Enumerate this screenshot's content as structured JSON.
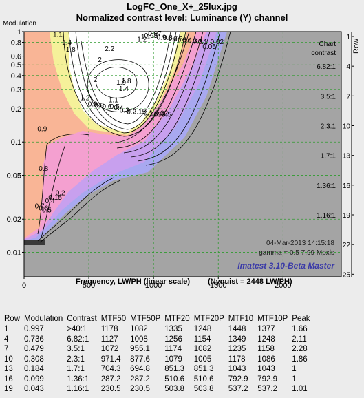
{
  "figure": {
    "title": "LogFC_One_X+_25lux.jpg",
    "subtitle": "Normalized contrast level:  Luminance (Y) channel"
  },
  "chart_data": {
    "type": "contour",
    "ylabel": "Modulation",
    "xlabel": "Frequency, LW/PH (linear scale)",
    "xlabel_note": "(Nyquist = 2448 LW/PH)",
    "y_scale": "log",
    "xlim": [
      0,
      2450
    ],
    "ylim": [
      0.006,
      1
    ],
    "x_ticks": [
      0,
      500,
      1000,
      1500,
      2000
    ],
    "y_ticks": [
      1,
      0.8,
      0.6,
      0.5,
      0.4,
      0.3,
      0.2,
      0.1,
      0.05,
      0.02,
      0.01
    ],
    "grid": true,
    "right_axis": {
      "label": "Row",
      "header": [
        "Chart",
        "contrast"
      ],
      "rows": [
        {
          "row": "1",
          "contrast": ""
        },
        {
          "row": "4",
          "contrast": "6.82:1"
        },
        {
          "row": "7",
          "contrast": "3.5:1"
        },
        {
          "row": "10",
          "contrast": "2.3:1"
        },
        {
          "row": "13",
          "contrast": "1.7:1"
        },
        {
          "row": "16",
          "contrast": "1.36:1"
        },
        {
          "row": "19",
          "contrast": "1.16:1"
        },
        {
          "row": "22",
          "contrast": ""
        },
        {
          "row": "25",
          "contrast": ""
        }
      ]
    },
    "contour_labels": [
      {
        "text": "2.2",
        "x": 660,
        "y": 0.67
      },
      {
        "text": "2",
        "x": 585,
        "y": 0.53
      },
      {
        "text": "2",
        "x": 550,
        "y": 0.35
      },
      {
        "text": "1.9",
        "x": 750,
        "y": 0.33
      },
      {
        "text": "1.8",
        "x": 790,
        "y": 0.34
      },
      {
        "text": "1.4",
        "x": 770,
        "y": 0.29
      },
      {
        "text": "1.2",
        "x": 470,
        "y": 0.24
      },
      {
        "text": "1.1",
        "x": 690,
        "y": 0.23
      },
      {
        "text": "1.1",
        "x": 260,
        "y": 0.9
      },
      {
        "text": "1.4",
        "x": 330,
        "y": 0.76
      },
      {
        "text": "1.8",
        "x": 360,
        "y": 0.66
      },
      {
        "text": "1.1",
        "x": 940,
        "y": 0.86
      },
      {
        "text": "1.2",
        "x": 910,
        "y": 0.81
      },
      {
        "text": "0.97",
        "x": 1010,
        "y": 0.92
      },
      {
        "text": "0.95",
        "x": 980,
        "y": 0.88
      },
      {
        "text": "0.9",
        "x": 1060,
        "y": 0.85
      },
      {
        "text": "0.8",
        "x": 1110,
        "y": 0.84
      },
      {
        "text": "0.7",
        "x": 1150,
        "y": 0.83
      },
      {
        "text": "0.6",
        "x": 1190,
        "y": 0.82
      },
      {
        "text": "0.5",
        "x": 1220,
        "y": 0.8
      },
      {
        "text": "0.4",
        "x": 1260,
        "y": 0.8
      },
      {
        "text": "0.3",
        "x": 1300,
        "y": 0.79
      },
      {
        "text": "0.2",
        "x": 1340,
        "y": 0.78
      },
      {
        "text": "0.1",
        "x": 1380,
        "y": 0.77
      },
      {
        "text": "0.05",
        "x": 1430,
        "y": 0.7
      },
      {
        "text": "0.02",
        "x": 1490,
        "y": 0.77
      },
      {
        "text": "0.9",
        "x": 530,
        "y": 0.21
      },
      {
        "text": "0.8",
        "x": 580,
        "y": 0.205
      },
      {
        "text": "0.6",
        "x": 640,
        "y": 0.2
      },
      {
        "text": "0.5",
        "x": 700,
        "y": 0.2
      },
      {
        "text": "0.4",
        "x": 730,
        "y": 0.195
      },
      {
        "text": "0.3",
        "x": 775,
        "y": 0.185
      },
      {
        "text": "0.2",
        "x": 830,
        "y": 0.18
      },
      {
        "text": "0.15",
        "x": 890,
        "y": 0.18
      },
      {
        "text": "0.1",
        "x": 960,
        "y": 0.175
      },
      {
        "text": "0.05",
        "x": 1010,
        "y": 0.17
      },
      {
        "text": "0.02",
        "x": 1060,
        "y": 0.175
      },
      {
        "text": "0.5",
        "x": 1100,
        "y": 0.17
      },
      {
        "text": "0.9",
        "x": 140,
        "y": 0.125
      },
      {
        "text": "0.8",
        "x": 150,
        "y": 0.055
      },
      {
        "text": "0.7",
        "x": 120,
        "y": 0.025
      },
      {
        "text": "0.6",
        "x": 150,
        "y": 0.024
      },
      {
        "text": "0.5",
        "x": 175,
        "y": 0.023
      },
      {
        "text": "0.4",
        "x": 200,
        "y": 0.028
      },
      {
        "text": "0.2",
        "x": 280,
        "y": 0.033
      },
      {
        "text": "0.15",
        "x": 240,
        "y": 0.03
      }
    ],
    "annotations": [
      "04-Mar-2013 14:15:18",
      "gamma = 0.5   7.99 Mpxls",
      "Imatest 3.10-Beta Master"
    ]
  },
  "table": {
    "headers": [
      "Row",
      "Modulation",
      "Contrast",
      "MTF50",
      "MTF50P",
      "MTF20",
      "MTF20P",
      "MTF10",
      "MTF10P",
      "Peak"
    ],
    "rows": [
      [
        "1",
        "0.997",
        ">40:1",
        "1178",
        "1082",
        "1335",
        "1248",
        "1448",
        "1377",
        "1.66"
      ],
      [
        "4",
        "0.736",
        "6.82:1",
        "1127",
        "1008",
        "1256",
        "1154",
        "1349",
        "1248",
        "2.11"
      ],
      [
        "7",
        "0.479",
        "3.5:1",
        "1072",
        "955.1",
        "1174",
        "1082",
        "1235",
        "1158",
        "2.28"
      ],
      [
        "10",
        "0.308",
        "2.3:1",
        "971.4",
        "877.6",
        "1079",
        "1005",
        "1178",
        "1086",
        "1.86"
      ],
      [
        "13",
        "0.184",
        "1.7:1",
        "704.3",
        "694.8",
        "851.3",
        "851.3",
        "1043",
        "1043",
        "1"
      ],
      [
        "16",
        "0.099",
        "1.36:1",
        "287.2",
        "287.2",
        "510.6",
        "510.6",
        "792.9",
        "792.9",
        "1"
      ],
      [
        "19",
        "0.043",
        "1.16:1",
        "230.5",
        "230.5",
        "503.8",
        "503.8",
        "537.2",
        "537.2",
        "1.01"
      ]
    ]
  },
  "colors": {
    "background": "#ececec",
    "plot_gray": "#a4a4a4",
    "salmon": "#f9b596",
    "yellow": "#f5f19a",
    "pink": "#f4a0d0",
    "violet": "#c8a0ee",
    "blue": "#a8a8f0",
    "gridline": "#2e9a2e",
    "watermark": "#3a3aa8"
  }
}
